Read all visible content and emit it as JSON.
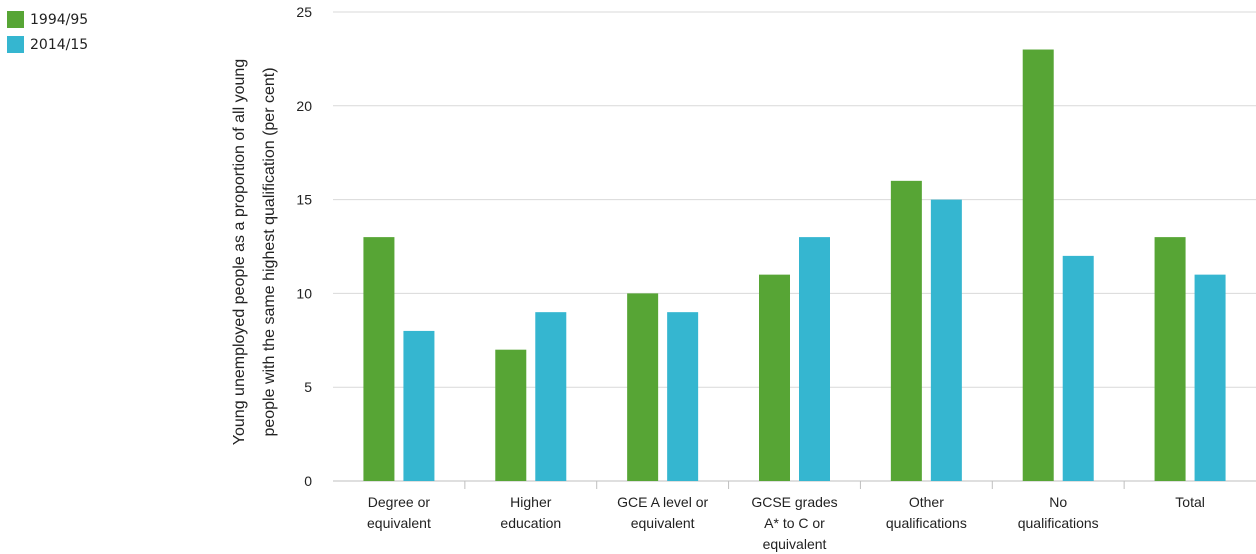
{
  "legend": [
    {
      "label": "1994/95",
      "color": "#57a535"
    },
    {
      "label": "2014/15",
      "color": "#35b6d0"
    }
  ],
  "chart_data": {
    "type": "bar",
    "categories": [
      [
        "Degree or",
        "equivalent"
      ],
      [
        "Higher",
        "education"
      ],
      [
        "GCE A level or",
        "equivalent"
      ],
      [
        "GCSE grades",
        "A* to C or",
        "equivalent"
      ],
      [
        "Other",
        "qualifications"
      ],
      [
        "No",
        "qualifications"
      ],
      [
        "Total"
      ]
    ],
    "series": [
      {
        "name": "1994/95",
        "color": "#57a535",
        "values": [
          13,
          7,
          10,
          11,
          16,
          23,
          13
        ]
      },
      {
        "name": "2014/15",
        "color": "#35b6d0",
        "values": [
          8,
          9,
          9,
          13,
          15,
          12,
          11
        ]
      }
    ],
    "ylabel": [
      "Young unemployed people as a proportion of all young",
      "people with the same highest qualification (per cent)"
    ],
    "ylim": [
      0,
      25
    ],
    "yticks": [
      0,
      5,
      10,
      15,
      20,
      25
    ],
    "grid": true,
    "legend_position": "top-left"
  }
}
